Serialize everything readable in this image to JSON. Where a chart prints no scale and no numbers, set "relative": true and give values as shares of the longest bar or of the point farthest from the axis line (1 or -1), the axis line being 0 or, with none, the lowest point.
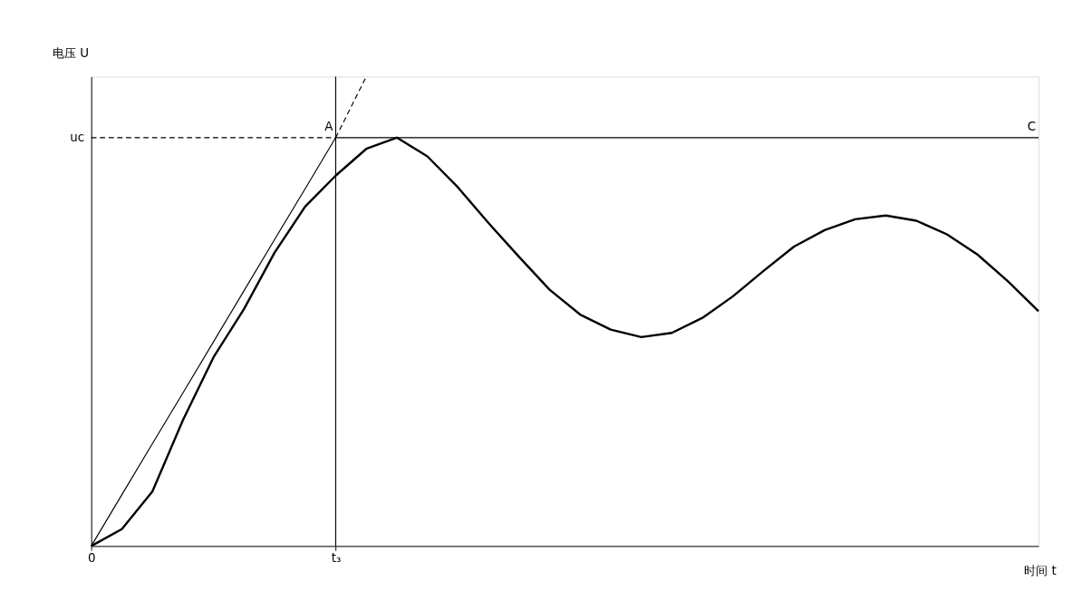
{
  "chart_data": {
    "type": "line",
    "relative": true,
    "xlabel": "时间 t",
    "ylabel": "电压 U",
    "categories": [
      "0",
      null,
      null,
      null,
      null,
      null,
      null,
      null,
      "t₃",
      null,
      null,
      null,
      null,
      null,
      null,
      null,
      null,
      null,
      null,
      null,
      null,
      null,
      null,
      null,
      null,
      null,
      null,
      null,
      null,
      null,
      null,
      null
    ],
    "grid": false,
    "marker": "none",
    "series": [
      {
        "color": "#000000",
        "line_style": "solid",
        "values": [
          0,
          0.036,
          0.116,
          0.268,
          0.402,
          0.505,
          0.625,
          0.723,
          0.789,
          0.846,
          0.87,
          0.83,
          0.764,
          0.688,
          0.616,
          0.546,
          0.493,
          0.461,
          0.445,
          0.454,
          0.486,
          0.532,
          0.586,
          0.638,
          0.673,
          0.696,
          0.704,
          0.693,
          0.664,
          0.621,
          0.564,
          0.5
        ]
      },
      {
        "color": "#000000",
        "line_style": "solid",
        "values": [
          0,
          0.109,
          0.218,
          0.326,
          0.435,
          0.544,
          0.653,
          0.761,
          0.87,
          null,
          null,
          null,
          null,
          null,
          null,
          null,
          null,
          null,
          null,
          null,
          null,
          null,
          null,
          null,
          null,
          null,
          null,
          null,
          null,
          null,
          null,
          null
        ]
      },
      {
        "color": "#000000",
        "line_style": "dashed",
        "values": [
          null,
          null,
          null,
          null,
          null,
          null,
          null,
          null,
          0.87,
          1,
          null,
          null,
          null,
          null,
          null,
          null,
          null,
          null,
          null,
          null,
          null,
          null,
          null,
          null,
          null,
          null,
          null,
          null,
          null,
          null,
          null,
          null
        ]
      },
      {
        "color": "#000000",
        "line_style": "dashed",
        "values": [
          0.87,
          0.87,
          0.87,
          0.87,
          0.87,
          0.87,
          0.87,
          0.87,
          0.87,
          null,
          null,
          null,
          null,
          null,
          null,
          null,
          null,
          null,
          null,
          null,
          null,
          null,
          null,
          null,
          null,
          null,
          null,
          null,
          null,
          null,
          null,
          null
        ]
      },
      {
        "color": "#000000",
        "line_style": "solid",
        "values": [
          null,
          null,
          null,
          null,
          null,
          null,
          null,
          null,
          0.87,
          0.87,
          0.87,
          0.87,
          0.87,
          0.87,
          0.87,
          0.87,
          0.87,
          0.87,
          0.87,
          0.87,
          0.87,
          0.87,
          0.87,
          0.87,
          0.87,
          0.87,
          0.87,
          0.87,
          0.87,
          0.87,
          0.87,
          0.87
        ]
      }
    ],
    "ref_lines": [
      {
        "axis": "x",
        "value": "t₃",
        "color": "#000000"
      }
    ],
    "annotations": [
      {
        "text": "uc",
        "x": "0",
        "y": 0.87
      },
      {
        "text": "A",
        "x": "t₃",
        "y": 0.87
      },
      {
        "text": "C",
        "y": 0.87
      }
    ]
  }
}
